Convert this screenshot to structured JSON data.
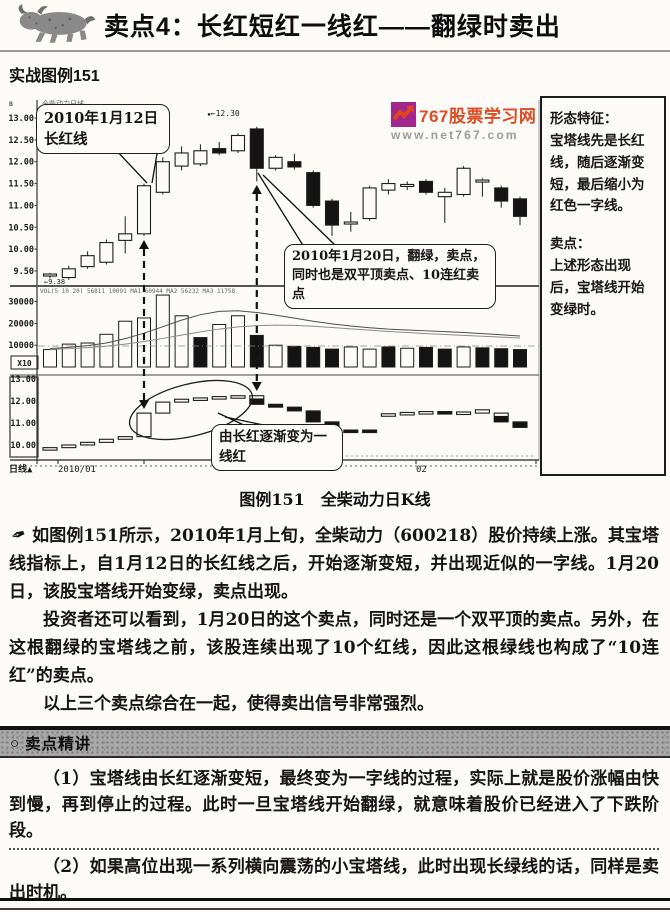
{
  "header": {
    "title": "卖点4：长红短红一线红——翻绿时卖出"
  },
  "figure_label": "实战图例151",
  "watermark": {
    "site_name": "767股票学习网",
    "url": "www.net767.com",
    "brand_color": "#e04a20",
    "logo_bg": "#a1268e"
  },
  "sidebar": {
    "feature_title": "形态特征：",
    "feature_body": "宝塔线先是长红线，随后逐渐变短，最后缩小为红色一字线。",
    "sell_title": "卖点：",
    "sell_body": "上述形态出现后，宝塔线开始变绿时。"
  },
  "caption": "图例151　全柴动力日K线",
  "paragraphs": {
    "pen_icon": "✒",
    "p1": "如图例151所示，2010年1月上旬，全柴动力（600218）股价持续上涨。其宝塔线指标上，自1月12日的长红线之后，开始逐渐变短，并出现近似的一字线。1月20日，该股宝塔线开始变绿，卖点出现。",
    "p2": "投资者还可以看到，1月20日的这个卖点，同时还是一个双平顶的卖点。另外，在这根翻绿的宝塔线之前，该股连续出现了10个红线，因此这根绿线也构成了“10连红”的卖点。",
    "p3": "以上三个卖点综合在一起，使得卖出信号非常强烈。"
  },
  "section2": {
    "bullet": "○",
    "heading": "卖点精讲",
    "p1": "（1）宝塔线由长红逐渐变短，最终变为一字线的过程，实际上就是股价涨幅由快到慢，再到停止的过程。此时一旦宝塔线开始翻绿，就意味着股价已经进入了下跌阶段。",
    "p2": "（2）如果高位出现一系列横向震荡的小宝塔线，此时出现长绿线的话，同样是卖出时机。"
  },
  "chart_data": {
    "type": "candlestick",
    "title": "全柴动力日线",
    "corner_label": "B",
    "annotations": {
      "callout_jan12": "2010年1月12日\n长红线",
      "callout_jan20": "2010年1月20日，翻绿，卖点，同时也是双平顶卖点、10连红卖点",
      "callout_tower": "由长红逐渐变为一线红",
      "price_marker_high": "←12.30",
      "price_marker_low": "←9.38",
      "dot_marker": "▪"
    },
    "kline": {
      "ylim": [
        9.2,
        13.1
      ],
      "yticks": [
        "13.00",
        "12.50",
        "12.00",
        "11.50",
        "11.00",
        "10.50",
        "10.00",
        "9.50"
      ],
      "candles": [
        [
          9.4,
          9.46,
          9.33,
          9.43,
          0
        ],
        [
          9.35,
          9.62,
          9.3,
          9.55,
          0
        ],
        [
          9.6,
          9.95,
          9.55,
          9.85,
          0
        ],
        [
          9.7,
          10.22,
          9.65,
          10.15,
          0
        ],
        [
          10.2,
          10.75,
          9.9,
          10.35,
          0
        ],
        [
          10.35,
          11.5,
          10.3,
          11.45,
          0
        ],
        [
          11.3,
          12.1,
          11.25,
          12.0,
          0
        ],
        [
          11.9,
          12.35,
          11.8,
          12.2,
          0
        ],
        [
          11.95,
          12.4,
          11.9,
          12.25,
          0
        ],
        [
          12.3,
          12.45,
          12.15,
          12.2,
          1
        ],
        [
          12.25,
          12.65,
          12.2,
          12.6,
          0
        ],
        [
          12.75,
          12.8,
          11.55,
          11.85,
          1
        ],
        [
          11.85,
          12.15,
          11.8,
          12.1,
          0
        ],
        [
          12.0,
          12.18,
          11.82,
          11.88,
          1
        ],
        [
          11.75,
          11.8,
          10.95,
          11.0,
          1
        ],
        [
          11.1,
          11.15,
          10.3,
          10.55,
          1
        ],
        [
          10.6,
          10.85,
          10.4,
          10.62,
          0
        ],
        [
          10.7,
          11.45,
          10.65,
          11.4,
          0
        ],
        [
          11.35,
          11.6,
          11.25,
          11.5,
          0
        ],
        [
          11.45,
          11.55,
          11.35,
          11.48,
          0
        ],
        [
          11.55,
          11.6,
          11.25,
          11.3,
          1
        ],
        [
          11.3,
          11.4,
          10.6,
          11.2,
          0
        ],
        [
          11.25,
          11.9,
          11.2,
          11.85,
          0
        ],
        [
          11.55,
          11.62,
          11.2,
          11.58,
          0
        ],
        [
          11.4,
          11.45,
          10.95,
          11.1,
          1
        ],
        [
          11.15,
          11.2,
          10.55,
          10.75,
          1
        ]
      ]
    },
    "volume": {
      "header": "VOL(5 10 20) 56811 10091 MA1 60944 MA2 56232 MA3 11758",
      "yticks": [
        "30000",
        "20000",
        "10000"
      ],
      "unit": "X10",
      "ylim": [
        0,
        36000
      ],
      "values": [
        8000,
        10500,
        11000,
        15000,
        21000,
        22500,
        33000,
        23500,
        13500,
        19500,
        23500,
        14500,
        10000,
        9500,
        9000,
        8200,
        9200,
        8200,
        9200,
        8600,
        9000,
        8200,
        9200,
        8800,
        8400,
        8000
      ],
      "filled": [
        0,
        0,
        0,
        0,
        0,
        0,
        0,
        0,
        1,
        0,
        0,
        1,
        0,
        1,
        1,
        1,
        0,
        0,
        1,
        0,
        1,
        1,
        0,
        1,
        1,
        1
      ],
      "ma1": [
        8500,
        9000,
        9800,
        11000,
        13000,
        15500,
        18500,
        21500,
        24000,
        25500,
        25800,
        25000,
        23800,
        22400,
        21000,
        19800,
        18800,
        18000,
        17400,
        17000,
        16600,
        16200,
        15800,
        15300,
        14800,
        14200
      ],
      "ma2": [
        8000,
        8400,
        8900,
        9600,
        10500,
        11700,
        13100,
        14600,
        16100,
        17400,
        18400,
        19000,
        19200,
        19100,
        18700,
        18100,
        17500,
        16900,
        16300,
        15800,
        15300,
        14900,
        14500,
        14100,
        13700,
        13300
      ]
    },
    "tower": {
      "yticks": [
        "13.00",
        "12.00",
        "11.00",
        "10.00"
      ],
      "ylim": [
        9.7,
        13.1
      ],
      "bars": [
        [
          9.88,
          9.83,
          0,
          0
        ],
        [
          10.0,
          9.88,
          0,
          0
        ],
        [
          10.12,
          10.0,
          0,
          0
        ],
        [
          10.26,
          10.12,
          0,
          0
        ],
        [
          10.38,
          10.26,
          0,
          0
        ],
        [
          11.45,
          10.38,
          0,
          0
        ],
        [
          11.95,
          11.45,
          0,
          0
        ],
        [
          12.08,
          11.95,
          0,
          0
        ],
        [
          12.14,
          12.08,
          0,
          0
        ],
        [
          12.2,
          12.14,
          0,
          0
        ],
        [
          12.24,
          12.2,
          0,
          0
        ],
        [
          12.24,
          11.85,
          1,
          1
        ],
        [
          11.85,
          11.72,
          1,
          0
        ],
        [
          11.72,
          11.55,
          1,
          0
        ],
        [
          11.55,
          11.05,
          1,
          0
        ],
        [
          11.05,
          10.62,
          1,
          0
        ],
        [
          10.68,
          10.6,
          1,
          0
        ],
        [
          10.68,
          10.62,
          1,
          0
        ],
        [
          11.42,
          11.34,
          0,
          0
        ],
        [
          11.48,
          11.4,
          0,
          0
        ],
        [
          11.52,
          11.45,
          0,
          0
        ],
        [
          11.52,
          11.42,
          1,
          0
        ],
        [
          11.5,
          11.42,
          0,
          0
        ],
        [
          11.6,
          11.45,
          0,
          0
        ],
        [
          11.45,
          11.05,
          1,
          1
        ],
        [
          11.05,
          10.8,
          1,
          0
        ]
      ]
    },
    "xaxis": {
      "period_label": "日线▲",
      "labels": [
        "2010/01",
        "02"
      ]
    }
  }
}
